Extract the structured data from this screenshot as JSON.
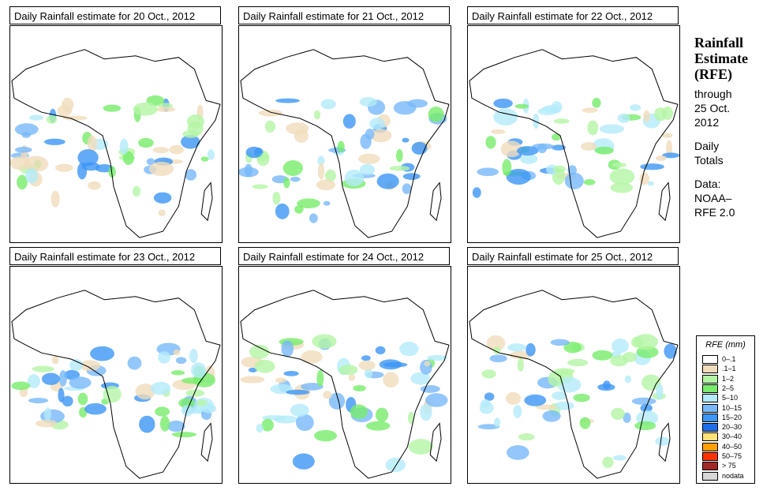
{
  "panels": [
    {
      "title": "Daily Rainfall estimate for  20 Oct., 2012",
      "date": "20 Oct., 2012"
    },
    {
      "title": "Daily Rainfall estimate for  21 Oct., 2012",
      "date": "21 Oct., 2012"
    },
    {
      "title": "Daily Rainfall estimate for  22 Oct., 2012",
      "date": "22 Oct., 2012"
    },
    {
      "title": "Daily Rainfall estimate for  23 Oct., 2012",
      "date": "23 Oct., 2012"
    },
    {
      "title": "Daily Rainfall estimate for  24 Oct., 2012",
      "date": "24 Oct., 2012"
    },
    {
      "title": "Daily Rainfall estimate for  25 Oct., 2012",
      "date": "25 Oct., 2012"
    }
  ],
  "sidebar": {
    "title_lines": [
      "Rainfall",
      "Estimate",
      "(RFE)"
    ],
    "through": "through",
    "through_date_lines": [
      "25 Oct.",
      "2012"
    ],
    "period_lines": [
      "Daily",
      "Totals"
    ],
    "data_label": "Data:",
    "data_source_lines": [
      "NOAA–",
      "RFE 2.0"
    ]
  },
  "legend": {
    "title": "RFE (mm)",
    "items": [
      {
        "label": "0–.1",
        "color": "#ffffff"
      },
      {
        "label": ".1–1",
        "color": "#f0dcbc"
      },
      {
        "label": "1–2",
        "color": "#b4f5a5"
      },
      {
        "label": "2–5",
        "color": "#78ec6c"
      },
      {
        "label": "5–10",
        "color": "#b4ebfa"
      },
      {
        "label": "10–15",
        "color": "#78b9fa"
      },
      {
        "label": "15–20",
        "color": "#3c96f5"
      },
      {
        "label": "20–30",
        "color": "#1e6eeb"
      },
      {
        "label": "30–40",
        "color": "#ffe178"
      },
      {
        "label": "40–50",
        "color": "#ffa000"
      },
      {
        "label": "50–75",
        "color": "#ff3200"
      },
      {
        "label": "> 75",
        "color": "#a02828"
      },
      {
        "label": "nodata",
        "color": "#d7d7d7"
      }
    ]
  }
}
